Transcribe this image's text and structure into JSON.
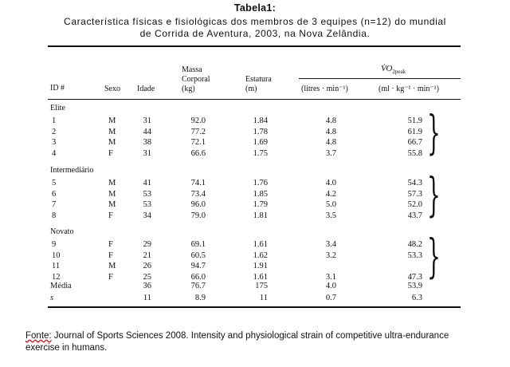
{
  "caption": {
    "title": "Tabela1:",
    "line1": "Característica  físicas e fisiológicas dos membros de 3 equipes (n=12)  do mundial",
    "line2": "de Corrida  de Aventura, 2003,  na Nova Zelândia."
  },
  "headers": {
    "id": "ID #",
    "sexo": "Sexo",
    "idade": "Idade",
    "massa_1": "Massa",
    "massa_2": "Corporal",
    "massa_3": "(kg)",
    "estatura_1": "Estatura",
    "estatura_2": "(m)",
    "vo2_label": "V̇O",
    "vo2_sub": "2peak",
    "vo2_abs": "(litres · min⁻¹)",
    "vo2_rel": "(ml · kg⁻¹ · min⁻¹)"
  },
  "groups": [
    {
      "name": "Elite",
      "rows": [
        [
          "1",
          "M",
          "31",
          "92.0",
          "1.84",
          "4.8",
          "51.9"
        ],
        [
          "2",
          "M",
          "44",
          "77.2",
          "1.78",
          "4.8",
          "61.9"
        ],
        [
          "3",
          "M",
          "38",
          "72.1",
          "1.69",
          "4.8",
          "66.7"
        ],
        [
          "4",
          "F",
          "31",
          "66.6",
          "1.75",
          "3.7",
          "55.8"
        ]
      ]
    },
    {
      "name": "Intermediário",
      "rows": [
        [
          "5",
          "M",
          "41",
          "74.1",
          "1.76",
          "4.0",
          "54.3"
        ],
        [
          "6",
          "M",
          "53",
          "73.4",
          "1.85",
          "4.2",
          "57.3"
        ],
        [
          "7",
          "M",
          "53",
          "96.0",
          "1.79",
          "5.0",
          "52.0"
        ],
        [
          "8",
          "F",
          "34",
          "79.0",
          "1.81",
          "3.5",
          "43.7"
        ]
      ]
    },
    {
      "name": "Novato",
      "rows": [
        [
          "9",
          "F",
          "29",
          "69.1",
          "1.61",
          "3.4",
          "48.2"
        ],
        [
          "10",
          "F",
          "21",
          "60.5",
          "1.62",
          "3.2",
          "53.3"
        ],
        [
          "11",
          "M",
          "26",
          "94.7",
          "1.91",
          "",
          ""
        ],
        [
          "12",
          "F",
          "25",
          "66.0",
          "1.61",
          "3.1",
          "47.3"
        ]
      ]
    }
  ],
  "summary": [
    [
      "Média",
      "",
      "36",
      "76.7",
      "175",
      "4.0",
      "53.9"
    ],
    [
      "s",
      "",
      "11",
      "8.9",
      "11",
      "0.7",
      "6.3"
    ]
  ],
  "source": {
    "label": "Fonte:",
    "text": " Journal of Sports Sciences 2008. Intensity and physiological strain of competitive ultra-endurance exercise in humans."
  }
}
